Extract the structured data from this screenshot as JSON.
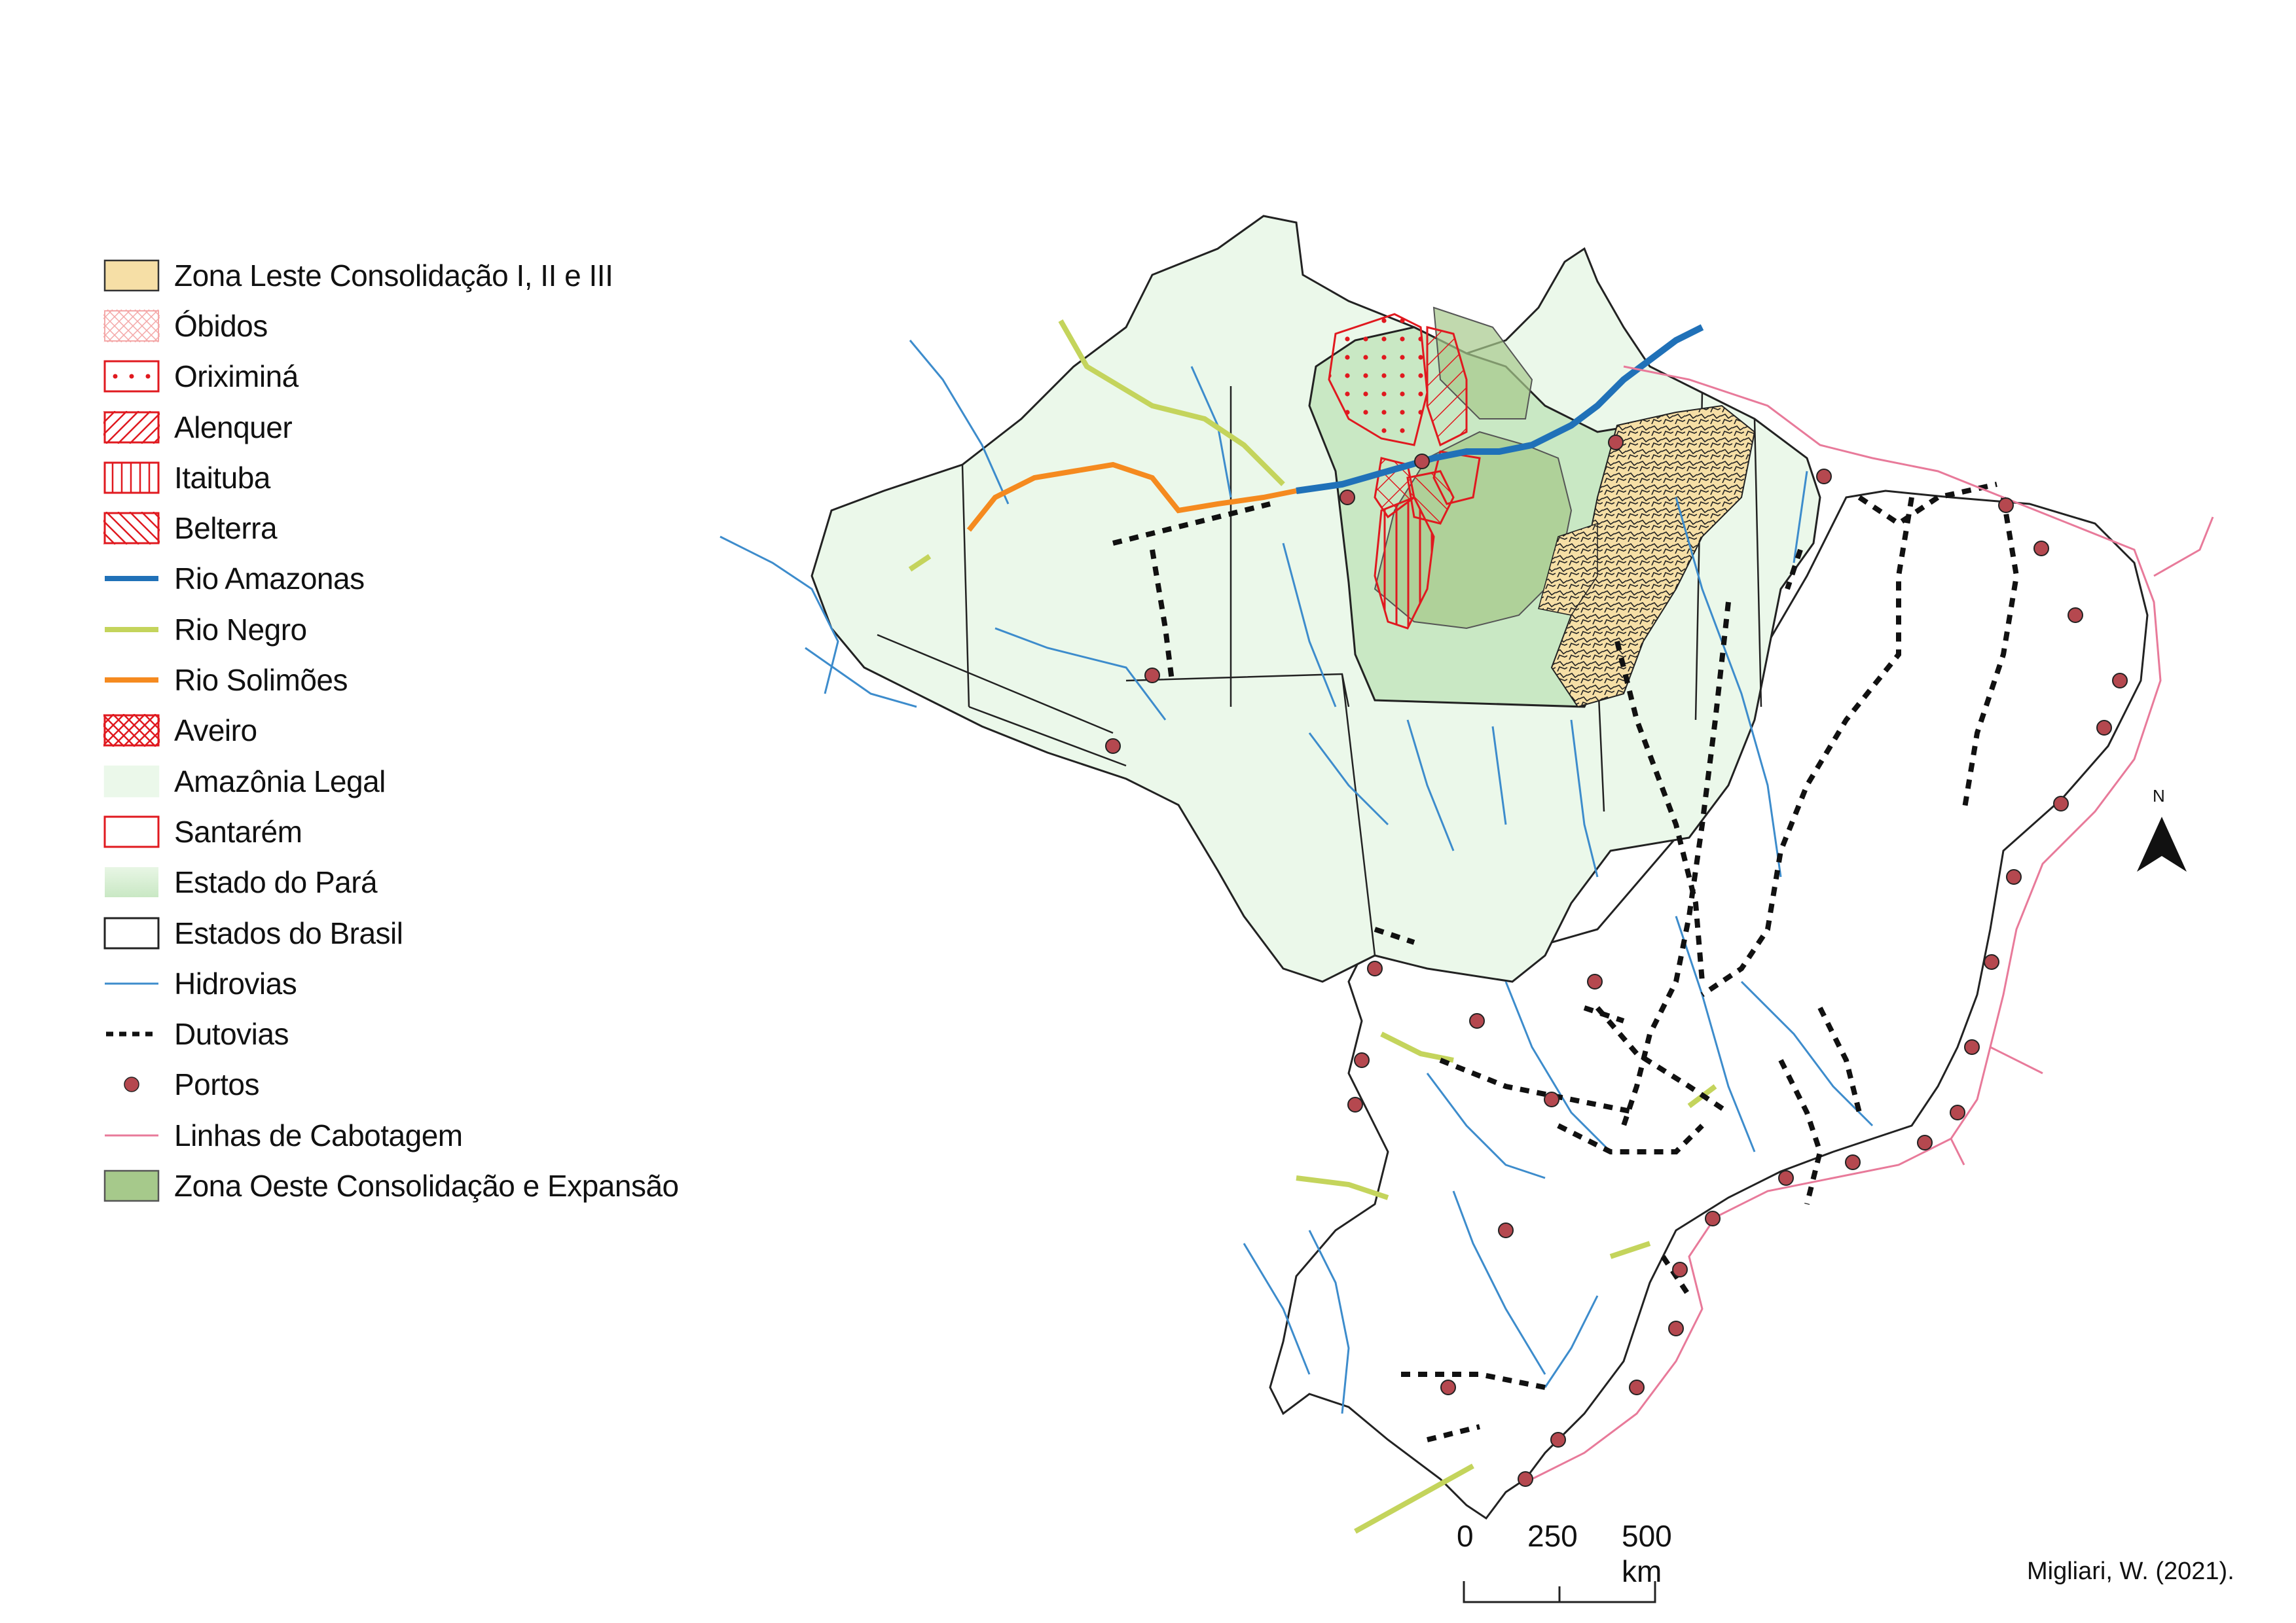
{
  "legend": {
    "items": [
      {
        "name": "zona-leste",
        "label": "Zona Leste Consolidação I, II e III",
        "kind": "fill",
        "fill": "#f6dfa6",
        "stroke": "#333333"
      },
      {
        "name": "obidos",
        "label": "Óbidos",
        "kind": "crosshatch-light",
        "stroke": "#f4a9a9"
      },
      {
        "name": "oriximina",
        "label": "Oriximiná",
        "kind": "dots",
        "stroke": "#e0191f"
      },
      {
        "name": "alenquer",
        "label": "Alenquer",
        "kind": "diag-right",
        "stroke": "#e0191f"
      },
      {
        "name": "itaituba",
        "label": "Itaituba",
        "kind": "vertical",
        "stroke": "#e0191f"
      },
      {
        "name": "belterra",
        "label": "Belterra",
        "kind": "diag-left",
        "stroke": "#e0191f"
      },
      {
        "name": "rio-amazonas",
        "label": "Rio Amazonas",
        "kind": "line",
        "stroke": "#2071b8"
      },
      {
        "name": "rio-negro",
        "label": "Rio Negro",
        "kind": "line",
        "stroke": "#c4d45c"
      },
      {
        "name": "rio-solimoes",
        "label": "Rio Solimões",
        "kind": "line",
        "stroke": "#f58a1f"
      },
      {
        "name": "aveiro",
        "label": "Aveiro",
        "kind": "crosshatch",
        "stroke": "#e0191f"
      },
      {
        "name": "amazonia-legal",
        "label": "Amazônia Legal",
        "kind": "fill",
        "fill": "#ebf8ea",
        "stroke": "none"
      },
      {
        "name": "santarem",
        "label": "Santarém",
        "kind": "outline",
        "stroke": "#e0191f"
      },
      {
        "name": "estado-para",
        "label": "Estado do Pará",
        "kind": "gradient",
        "fill": "#c9e8c4",
        "stroke": "none"
      },
      {
        "name": "estados-brasil",
        "label": "Estados do Brasil",
        "kind": "outline",
        "stroke": "#222222"
      },
      {
        "name": "hidrovias",
        "label": "Hidrovias",
        "kind": "thin-line",
        "stroke": "#3d8ccc"
      },
      {
        "name": "dutovias",
        "label": "Dutovias",
        "kind": "dashed",
        "stroke": "#111111"
      },
      {
        "name": "portos",
        "label": "Portos",
        "kind": "dot",
        "fill": "#b5484f"
      },
      {
        "name": "linhas-cabotagem",
        "label": "Linhas de Cabotagem",
        "kind": "thin-line",
        "stroke": "#e87a9a"
      },
      {
        "name": "zona-oeste",
        "label": "Zona Oeste Consolidação e Expansão",
        "kind": "fill",
        "fill": "#a6c98b",
        "stroke": "#555555"
      }
    ]
  },
  "scale_bar": {
    "ticks": [
      "0",
      "250",
      "500 km"
    ]
  },
  "north_arrow": {
    "label": "N"
  },
  "credit": "Migliari, W. (2021).",
  "colors": {
    "amazonia_legal": "#ebf8ea",
    "para_state": "#c9e8c4",
    "zona_oeste": "#a6c98b",
    "zona_leste": "#f6dfa6",
    "hidrovias": "#3d8ccc",
    "amazonas": "#2071b8",
    "negro": "#c4d45c",
    "solimoes": "#f58a1f",
    "cabotagem": "#e87a9a",
    "portos": "#b5484f",
    "municipios": "#e0191f"
  }
}
